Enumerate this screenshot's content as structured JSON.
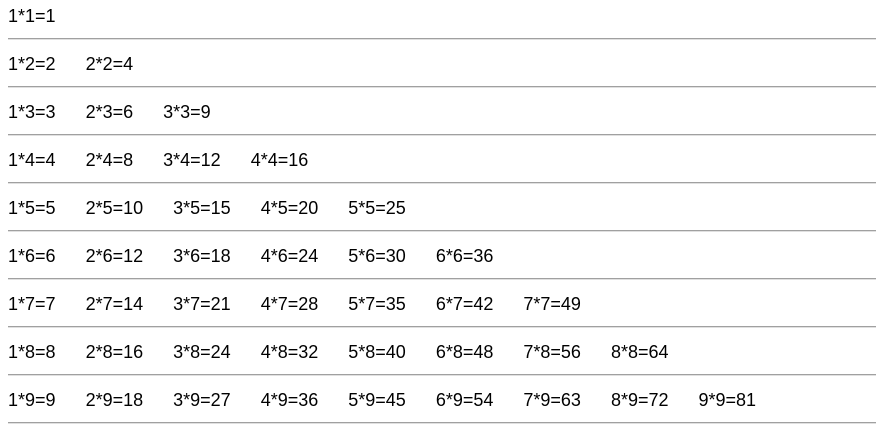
{
  "rows": [
    [
      "1*1=1"
    ],
    [
      "1*2=2",
      "2*2=4"
    ],
    [
      "1*3=3",
      "2*3=6",
      "3*3=9"
    ],
    [
      "1*4=4",
      "2*4=8",
      "3*4=12",
      "4*4=16"
    ],
    [
      "1*5=5",
      "2*5=10",
      "3*5=15",
      "4*5=20",
      "5*5=25"
    ],
    [
      "1*6=6",
      "2*6=12",
      "3*6=18",
      "4*6=24",
      "5*6=30",
      "6*6=36"
    ],
    [
      "1*7=7",
      "2*7=14",
      "3*7=21",
      "4*7=28",
      "5*7=35",
      "6*7=42",
      "7*7=49"
    ],
    [
      "1*8=8",
      "2*8=16",
      "3*8=24",
      "4*8=32",
      "5*8=40",
      "6*8=48",
      "7*8=56",
      "8*8=64"
    ],
    [
      "1*9=9",
      "2*9=18",
      "3*9=27",
      "4*9=36",
      "5*9=45",
      "6*9=54",
      "7*9=63",
      "8*9=72",
      "9*9=81"
    ]
  ]
}
